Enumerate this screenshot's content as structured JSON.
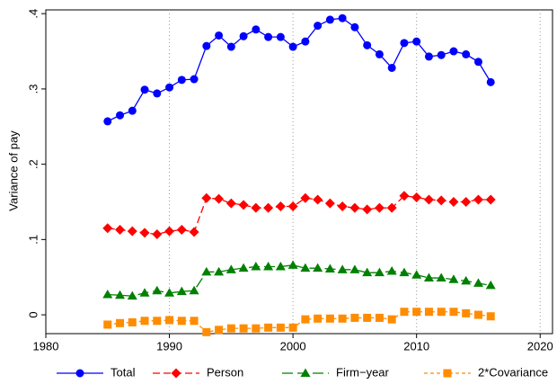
{
  "chart_data": {
    "type": "line",
    "y_label": "Variance of pay",
    "x": [
      1985,
      1986,
      1987,
      1988,
      1989,
      1990,
      1991,
      1992,
      1993,
      1994,
      1995,
      1996,
      1997,
      1998,
      1999,
      2000,
      2001,
      2002,
      2003,
      2004,
      2005,
      2006,
      2007,
      2008,
      2009,
      2010,
      2011,
      2012,
      2013,
      2014,
      2015,
      2016
    ],
    "series": [
      {
        "name": "Total",
        "color": "#0000ff",
        "marker": "circle",
        "dash": "none",
        "values": [
          0.257,
          0.265,
          0.271,
          0.299,
          0.294,
          0.302,
          0.312,
          0.313,
          0.357,
          0.371,
          0.356,
          0.37,
          0.379,
          0.369,
          0.369,
          0.356,
          0.363,
          0.384,
          0.392,
          0.394,
          0.382,
          0.358,
          0.346,
          0.328,
          0.361,
          0.363,
          0.343,
          0.345,
          0.35,
          0.346,
          0.336,
          0.309
        ]
      },
      {
        "name": "Person",
        "color": "#ff0000",
        "marker": "diamond",
        "dash": "8 4",
        "values": [
          0.115,
          0.113,
          0.111,
          0.109,
          0.107,
          0.111,
          0.113,
          0.11,
          0.155,
          0.154,
          0.148,
          0.146,
          0.142,
          0.142,
          0.144,
          0.144,
          0.155,
          0.153,
          0.148,
          0.144,
          0.142,
          0.14,
          0.142,
          0.142,
          0.158,
          0.156,
          0.153,
          0.152,
          0.15,
          0.15,
          0.153,
          0.153
        ]
      },
      {
        "name": "Firm−year",
        "color": "#008000",
        "marker": "triangle",
        "dash": "12 5",
        "values": [
          0.027,
          0.026,
          0.025,
          0.029,
          0.032,
          0.029,
          0.031,
          0.032,
          0.057,
          0.057,
          0.06,
          0.062,
          0.064,
          0.064,
          0.064,
          0.066,
          0.062,
          0.062,
          0.061,
          0.06,
          0.06,
          0.056,
          0.056,
          0.058,
          0.056,
          0.053,
          0.049,
          0.049,
          0.047,
          0.045,
          0.042,
          0.039
        ]
      },
      {
        "name": "2*Covariance",
        "color": "#ff8c00",
        "marker": "square",
        "dash": "4 3",
        "values": [
          -0.013,
          -0.011,
          -0.01,
          -0.008,
          -0.008,
          -0.007,
          -0.008,
          -0.008,
          -0.023,
          -0.02,
          -0.018,
          -0.018,
          -0.018,
          -0.017,
          -0.017,
          -0.017,
          -0.006,
          -0.005,
          -0.005,
          -0.005,
          -0.004,
          -0.004,
          -0.004,
          -0.006,
          0.004,
          0.004,
          0.004,
          0.004,
          0.004,
          0.002,
          0.0,
          -0.002
        ]
      }
    ],
    "xlim": [
      1980,
      2021
    ],
    "xticks": [
      1980,
      1990,
      2000,
      2010,
      2020
    ],
    "ylim": [
      -0.025,
      0.405
    ],
    "yticks": [
      0,
      {
        "value": 0.1,
        "label": ".1"
      },
      {
        "value": 0.2,
        "label": ".2"
      },
      {
        "value": 0.3,
        "label": ".3"
      },
      {
        "value": 0.4,
        "label": ".4"
      }
    ],
    "x_grid": true,
    "legend": "bottom"
  }
}
